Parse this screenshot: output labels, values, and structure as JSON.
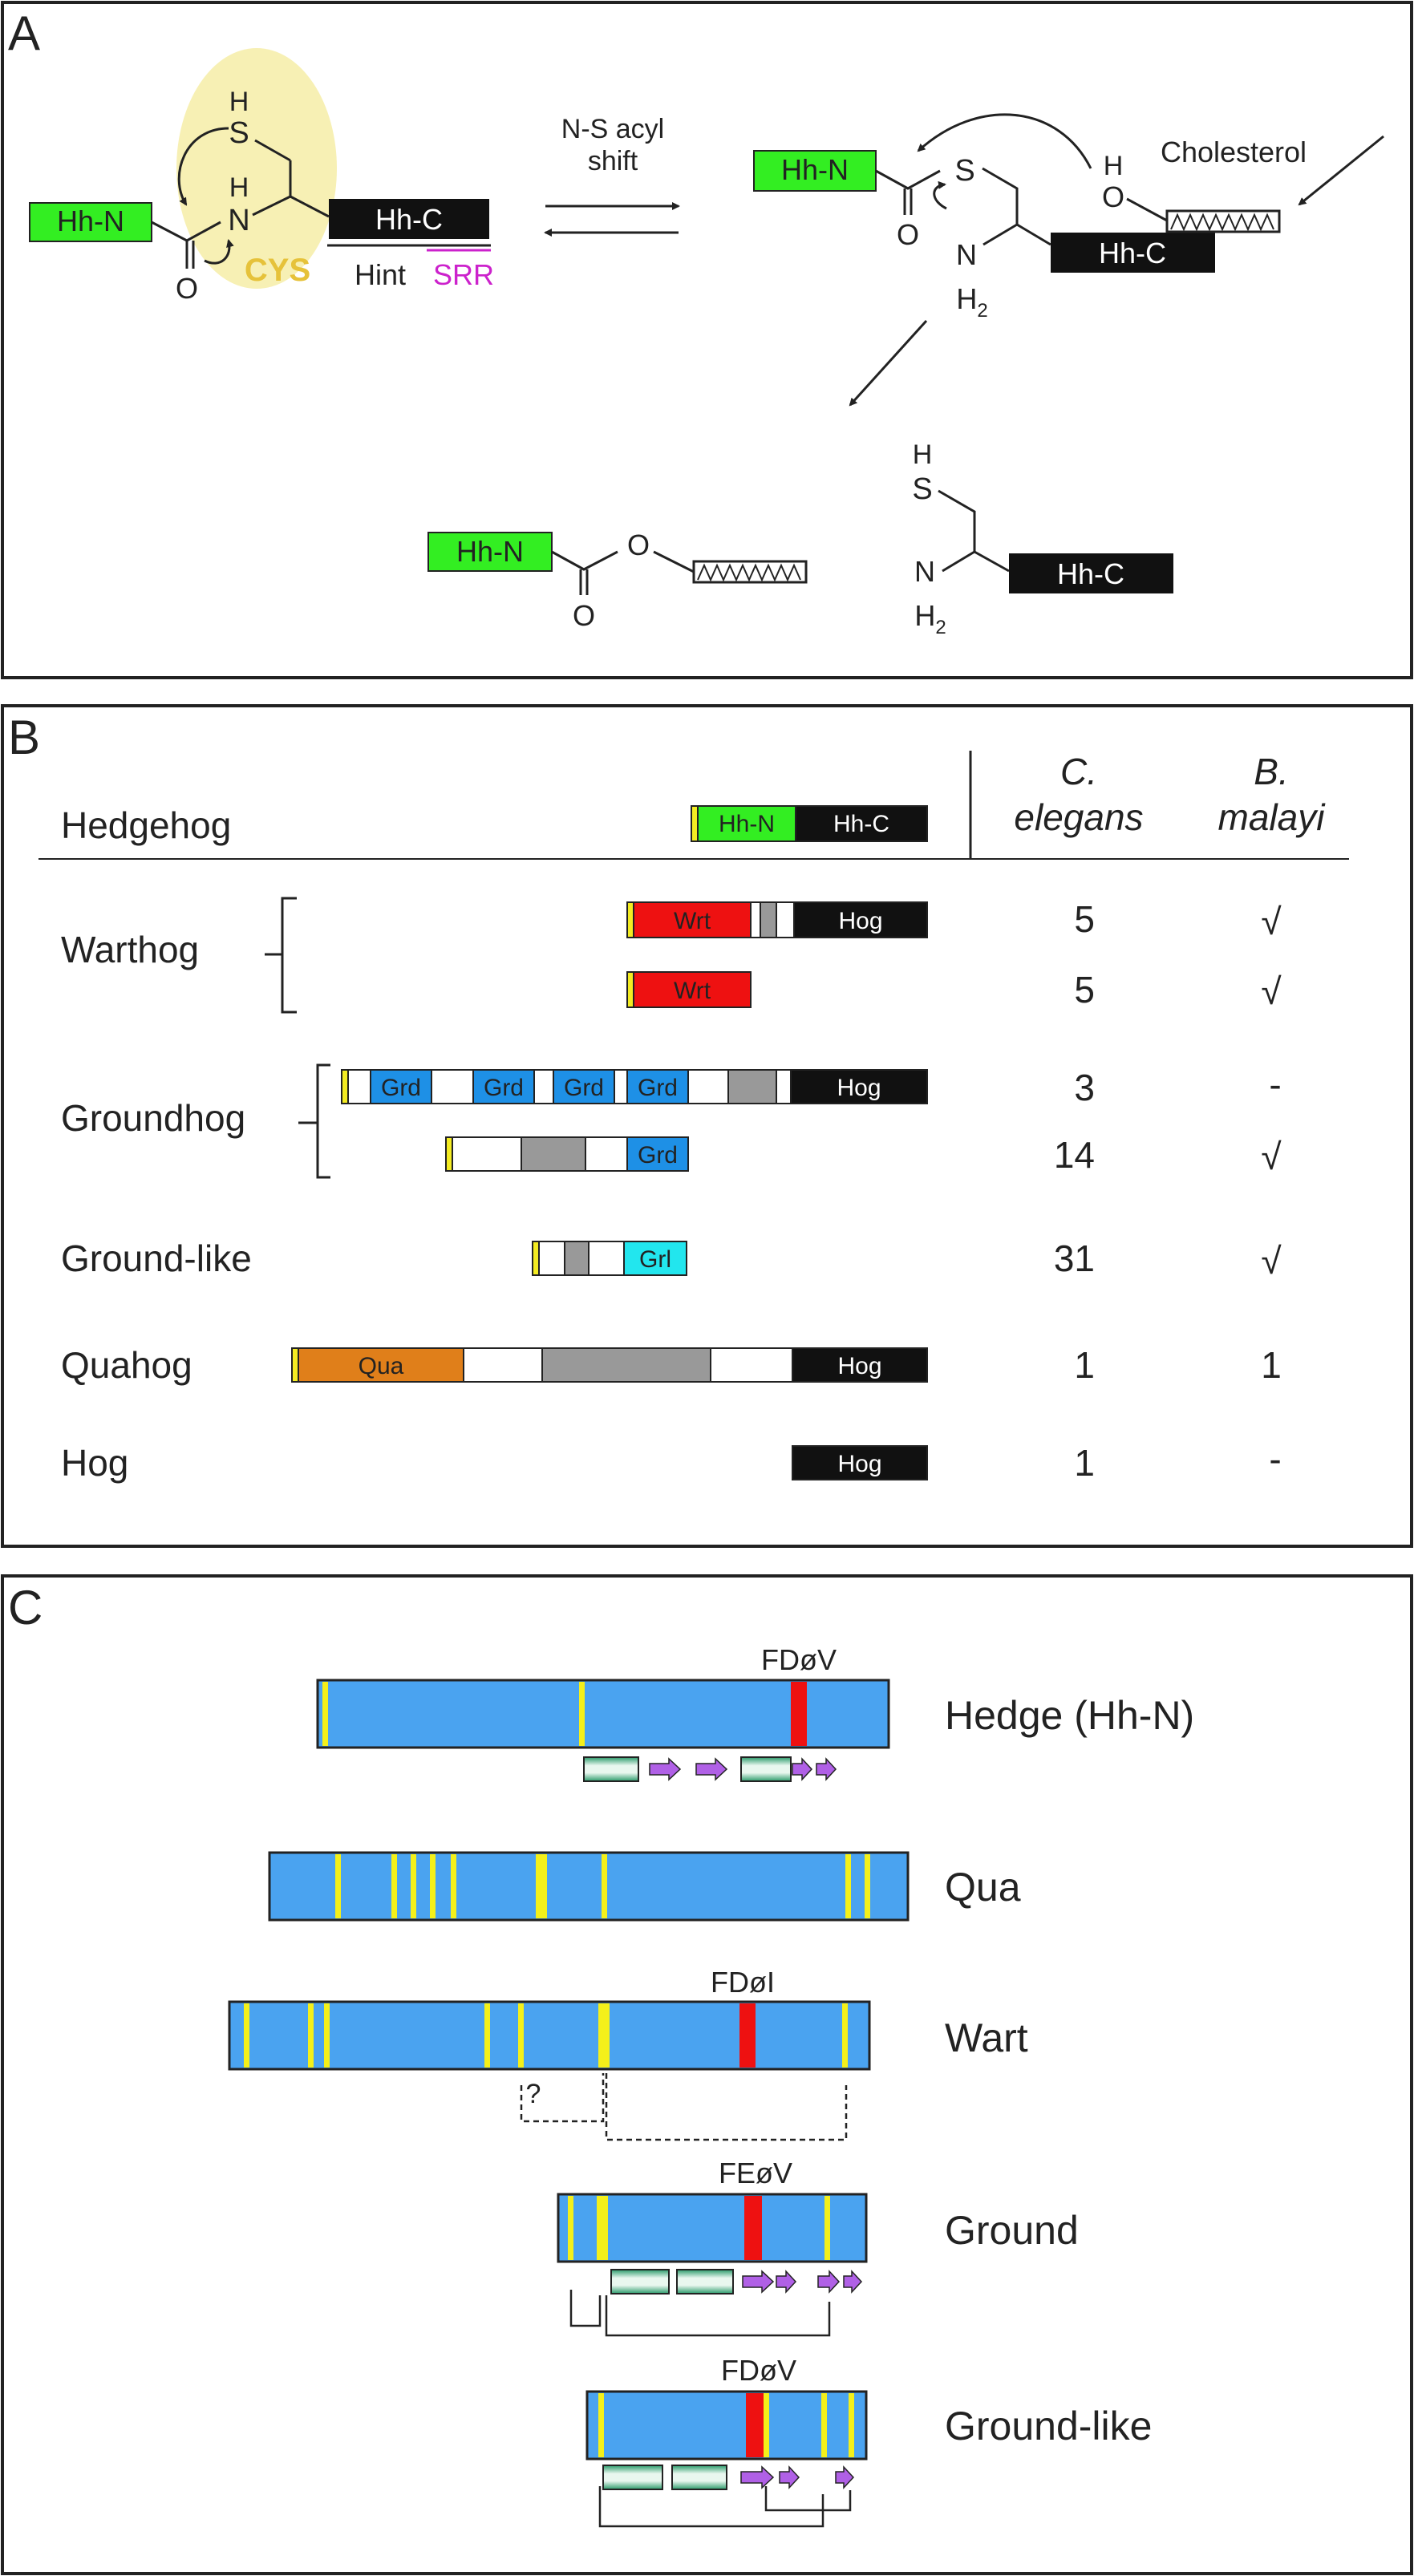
{
  "panel_a": {
    "letter": "A",
    "hh_n": "Hh-N",
    "hh_c": "Hh-C",
    "atom_s": "S",
    "atom_h": "H",
    "atom_n": "N",
    "atom_o": "O",
    "cys": "CYS",
    "hint": "Hint",
    "srr": "SRR",
    "reaction": [
      "N-S acyl",
      "shift"
    ],
    "cholesterol": "Cholesterol",
    "h2": "H",
    "sub2": "2",
    "colors": {
      "green": "#33ee22",
      "cys": "#e6c23a",
      "srr": "#cc22cc",
      "highlight": "#f7f0b4"
    }
  },
  "panel_b": {
    "letter": "B",
    "col1": [
      "C.",
      "elegans"
    ],
    "col2": [
      "B.",
      "malayi"
    ],
    "families": {
      "hedgehog": "Hedgehog",
      "warthog": "Warthog",
      "groundhog": "Groundhog",
      "groundlike": "Ground-like",
      "quahog": "Quahog",
      "hog": "Hog"
    },
    "domains": {
      "hhn": "Hh-N",
      "hhc": "Hh-C",
      "wrt": "Wrt",
      "grd": "Grd",
      "grl": "Grl",
      "qua": "Qua",
      "hog": "Hog"
    },
    "counts": [
      {
        "ce": "5",
        "bm": "√"
      },
      {
        "ce": "5",
        "bm": "√"
      },
      {
        "ce": "3",
        "bm": "-"
      },
      {
        "ce": "14",
        "bm": "√"
      },
      {
        "ce": "31",
        "bm": "√"
      },
      {
        "ce": "1",
        "bm": "1"
      },
      {
        "ce": "1",
        "bm": "-"
      }
    ],
    "colors": {
      "wrt": "#ee1111",
      "grd": "#1e90e6",
      "grl": "#22e6ee",
      "qua": "#e07f1a",
      "gray": "#999999",
      "yellow": "#f4ec22"
    }
  },
  "panel_c": {
    "letter": "C",
    "proteins": [
      {
        "name": "Hedge (Hh-N)",
        "motif": "FDøV"
      },
      {
        "name": "Qua",
        "motif": ""
      },
      {
        "name": "Wart",
        "motif": "FDøI"
      },
      {
        "name": "Ground",
        "motif": "FEøV"
      },
      {
        "name": "Ground-like",
        "motif": "FDøV"
      }
    ],
    "question": "?",
    "colors": {
      "bar": "#4aa3f0",
      "stripe": "#f4f01a",
      "motif": "#ee1111",
      "arrow": "#b060e6",
      "sheet": "#2a9a6a"
    }
  }
}
